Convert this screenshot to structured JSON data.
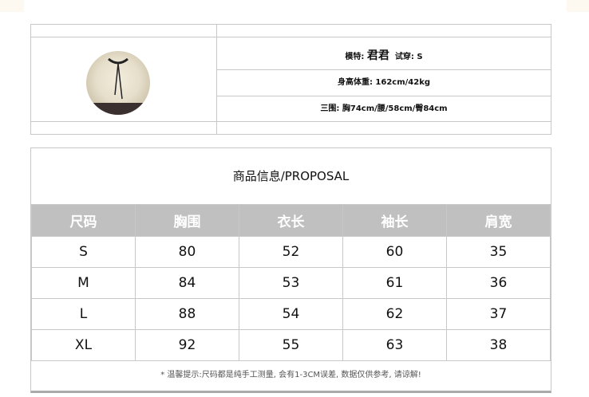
{
  "model_info": {
    "model_label": "模特:",
    "model_name": "君君",
    "tried_size": "试穿: S",
    "height_weight": "身高体重: 162cm/42kg",
    "measurements": "三围: 胸74cm/腰/58cm/臀84cm"
  },
  "size_chart": {
    "title": "商品信息/PROPOSAL",
    "headers": [
      "尺码",
      "胸围",
      "衣长",
      "袖长",
      "肩宽"
    ],
    "rows": [
      [
        "S",
        "80",
        "52",
        "60",
        "35"
      ],
      [
        "M",
        "84",
        "53",
        "61",
        "36"
      ],
      [
        "L",
        "88",
        "54",
        "62",
        "37"
      ],
      [
        "XL",
        "92",
        "55",
        "63",
        "38"
      ]
    ],
    "note": "* 温馨提示:尺码都是纯手工测量, 会有1-3CM误差, 数据仅供参考, 请谅解!"
  },
  "colors": {
    "header_bg": "#c0c0c0",
    "border": "#c8c8c8"
  }
}
